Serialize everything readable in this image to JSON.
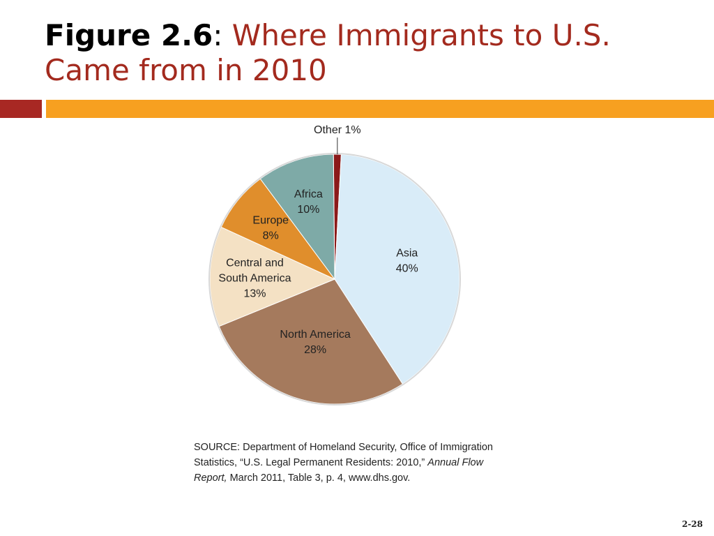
{
  "slide": {
    "title_lead": "Figure 2.6",
    "title_sep": ":",
    "title_rest": "Where Immigrants to U.S. Came from in 2010",
    "page_number": "2-28"
  },
  "source": {
    "text_before": "SOURCE: Department of Homeland Security, Office of Immigration Statistics, “U.S. Legal Permanent Residents: 2010,” ",
    "italic": "Annual Flow Report,",
    "text_after": " March 2011, Table 3, p. 4, www.dhs.gov."
  },
  "colors": {
    "title_red": "#a32a1e",
    "bar_red": "#a82823",
    "bar_orange": "#f7a020"
  },
  "chart_data": {
    "type": "pie",
    "title": "",
    "unit": "%",
    "slices": [
      {
        "name": "Other",
        "value": 1,
        "label_lines": [
          "Other 1%"
        ],
        "color": "#8b1a1a",
        "callout": true
      },
      {
        "name": "Asia",
        "value": 40,
        "label_lines": [
          "Asia",
          "40%"
        ],
        "color": "#d9ecf8"
      },
      {
        "name": "North America",
        "value": 28,
        "label_lines": [
          "North America",
          "28%"
        ],
        "color": "#a57a5d"
      },
      {
        "name": "Central and South America",
        "value": 13,
        "label_lines": [
          "Central and",
          "South America",
          "13%"
        ],
        "color": "#f4e1c4"
      },
      {
        "name": "Europe",
        "value": 8,
        "label_lines": [
          "Europe",
          "8%"
        ],
        "color": "#e08e2c"
      },
      {
        "name": "Africa",
        "value": 10,
        "label_lines": [
          "Africa",
          "10%"
        ],
        "color": "#7eaaa7"
      }
    ]
  }
}
